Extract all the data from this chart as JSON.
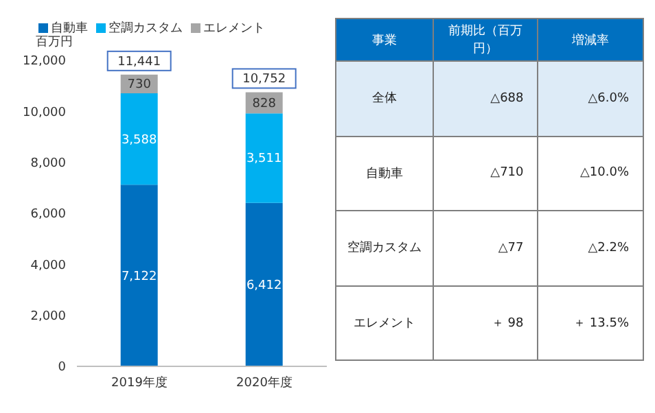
{
  "chart_data": [
    {
      "type": "bar",
      "stacked": true,
      "ylabel": "百万円",
      "categories": [
        "2019年度",
        "2020年度"
      ],
      "series": [
        {
          "name": "自動車",
          "color": "#0070c0",
          "values": [
            7122,
            6412
          ],
          "value_labels": [
            "7,122",
            "6,412"
          ]
        },
        {
          "name": "空調カスタム",
          "color": "#00b0f0",
          "values": [
            3588,
            3511
          ],
          "value_labels": [
            "3,588",
            "3,511"
          ]
        },
        {
          "name": "エレメント",
          "color": "#a6a6a6",
          "values": [
            730,
            828
          ],
          "value_labels": [
            "730",
            "828"
          ]
        }
      ],
      "totals": [
        "11,441",
        "10,752"
      ],
      "ylim": [
        0,
        12000
      ],
      "yticks": [
        0,
        {
          "value": 2000,
          "label": "2,000"
        },
        {
          "value": 4000,
          "label": "4,000"
        },
        {
          "value": 6000,
          "label": "6,000"
        },
        {
          "value": 8000,
          "label": "8,000"
        },
        {
          "value": 10000,
          "label": "10,000"
        },
        {
          "value": 12000,
          "label": "12,000"
        }
      ],
      "legend": "top"
    },
    {
      "type": "other",
      "categories": [
        "事業",
        "前期比（百万円）",
        "増減率"
      ],
      "y_categories": [
        "全体",
        "自動車",
        "空調カスタム",
        "エレメント"
      ],
      "cell_labels": [
        [
          "△688",
          "△6.0%"
        ],
        [
          "△710",
          "△10.0%"
        ],
        [
          "△77",
          "△2.2%"
        ],
        [
          "＋ 98",
          "＋ 13.5%"
        ]
      ]
    }
  ]
}
